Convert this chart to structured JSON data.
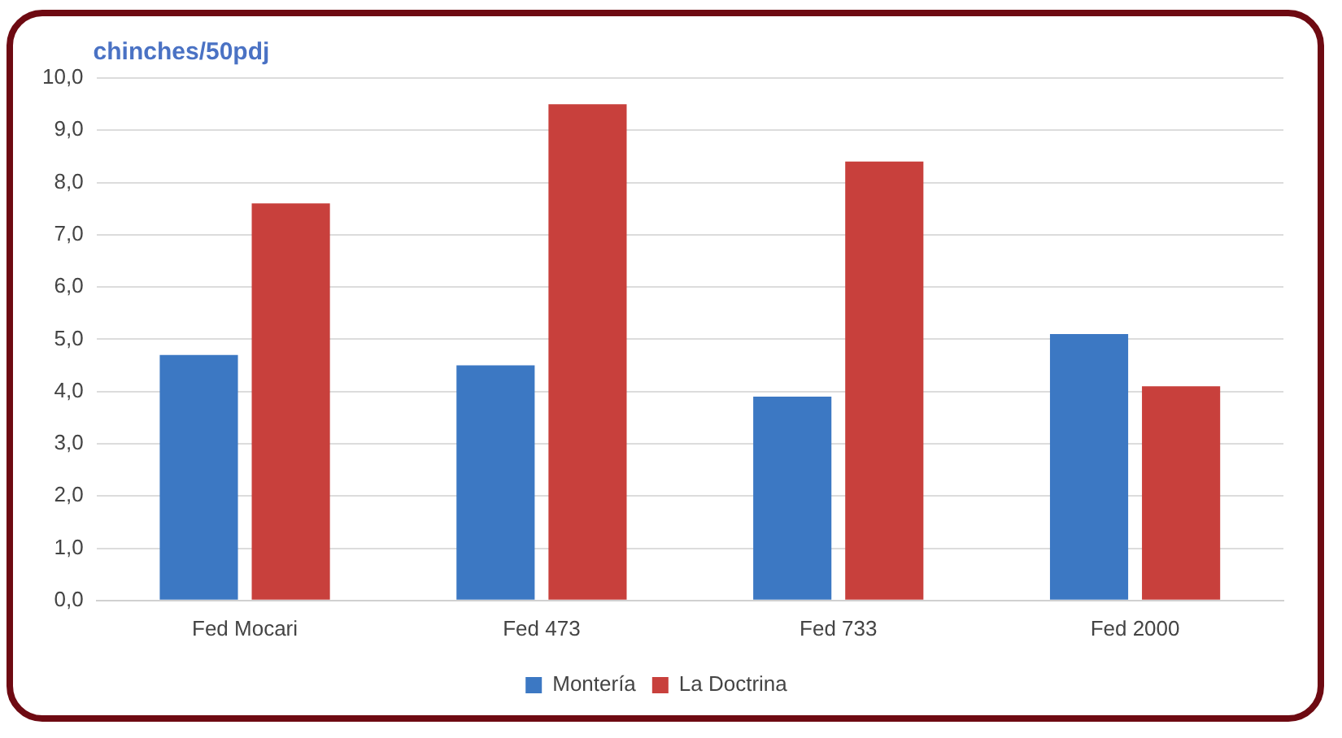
{
  "chart_data": {
    "type": "bar",
    "ylabel": "chinches/50pdj",
    "categories": [
      "Fed Mocari",
      "Fed 473",
      "Fed 733",
      "Fed 2000"
    ],
    "series": [
      {
        "name": "Montería",
        "color": "#3c78c3",
        "values": [
          4.7,
          4.5,
          3.9,
          5.1
        ]
      },
      {
        "name": "La Doctrina",
        "color": "#c8403c",
        "values": [
          7.6,
          9.5,
          8.4,
          4.1
        ]
      }
    ],
    "ylim": [
      0,
      10
    ],
    "yticks": [
      {
        "value": 0,
        "label": "0,0"
      },
      {
        "value": 1,
        "label": "1,0"
      },
      {
        "value": 2,
        "label": "2,0"
      },
      {
        "value": 3,
        "label": "3,0"
      },
      {
        "value": 4,
        "label": "4,0"
      },
      {
        "value": 5,
        "label": "5,0"
      },
      {
        "value": 6,
        "label": "6,0"
      },
      {
        "value": 7,
        "label": "7,0"
      },
      {
        "value": 8,
        "label": "8,0"
      },
      {
        "value": 9,
        "label": "9,0"
      },
      {
        "value": 10,
        "label": "10,0"
      }
    ],
    "grid": "y",
    "legend": "bottom"
  }
}
